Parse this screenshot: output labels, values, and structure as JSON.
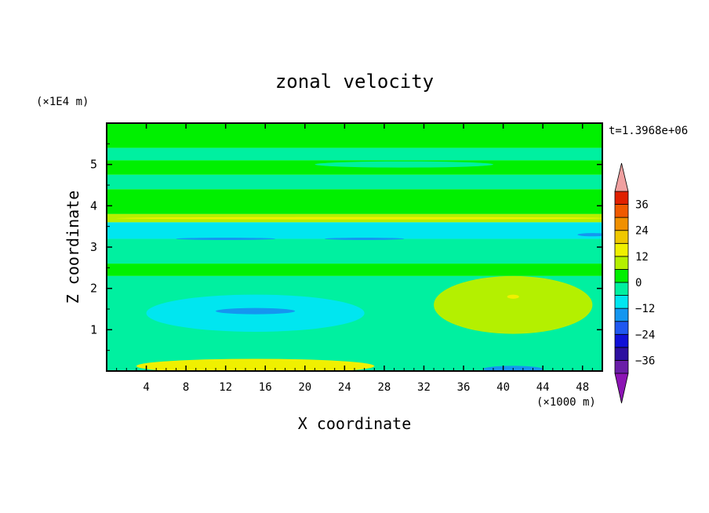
{
  "chart_data": {
    "type": "heatmap",
    "title": "zonal velocity",
    "xlabel": "X coordinate",
    "ylabel": "Z coordinate",
    "x_unit": "(×1000 m)",
    "y_unit": "(×1E4 m)",
    "time_label": "t=1.3968e+06",
    "xlim": [
      0,
      50
    ],
    "ylim": [
      0,
      6
    ],
    "x_ticks": [
      4,
      8,
      12,
      16,
      20,
      24,
      28,
      32,
      36,
      40,
      44,
      48
    ],
    "y_ticks": [
      1,
      2,
      3,
      4,
      5
    ],
    "colorbar": {
      "levels": [
        -42,
        -36,
        -30,
        -24,
        -18,
        -12,
        -6,
        0,
        6,
        12,
        18,
        24,
        30,
        36,
        42
      ],
      "tick_labels": [
        "36",
        "24",
        "12",
        "0",
        "−12",
        "−24",
        "−36"
      ],
      "tick_values": [
        36,
        24,
        12,
        0,
        -12,
        -24,
        -36
      ],
      "colors": [
        "#6a1ea8",
        "#2d0fa0",
        "#1010d8",
        "#2058f0",
        "#1496f0",
        "#00e6f0",
        "#00f0a0",
        "#00f000",
        "#b4f000",
        "#f0f000",
        "#f0c800",
        "#f09000",
        "#f05a00",
        "#e02000"
      ],
      "under_color": "#8c14b4",
      "over_color": "#f0a0a0"
    },
    "bands": [
      {
        "zmin": 5.4,
        "zmax": 6.0,
        "value": 2,
        "color": "#00f000"
      },
      {
        "zmin": 5.1,
        "zmax": 5.4,
        "value": -2,
        "color": "#00f0a0"
      },
      {
        "zmin": 4.75,
        "zmax": 5.1,
        "value": 2,
        "color": "#00f000"
      },
      {
        "zmin": 4.4,
        "zmax": 4.75,
        "value": -2,
        "color": "#00f0a0"
      },
      {
        "zmin": 3.8,
        "zmax": 4.4,
        "value": 3,
        "color": "#00f000"
      },
      {
        "zmin": 3.6,
        "zmax": 3.8,
        "value": 8,
        "color": "#b4f000"
      },
      {
        "zmin": 3.2,
        "zmax": 3.6,
        "value": -10,
        "color": "#00e6f0"
      },
      {
        "zmin": 2.6,
        "zmax": 3.2,
        "value": -5,
        "color": "#00f0a0"
      },
      {
        "zmin": 2.3,
        "zmax": 2.6,
        "value": 2,
        "color": "#00f000"
      },
      {
        "zmin": 0.0,
        "zmax": 2.3,
        "value": -4,
        "color": "#00f0a0"
      }
    ],
    "features": [
      {
        "name": "upper-cyan-lens",
        "center": [
          30,
          5.0
        ],
        "size": [
          18,
          0.15
        ],
        "value": -3,
        "color": "#00f0a0"
      },
      {
        "name": "jet-core",
        "center": [
          26,
          3.7
        ],
        "size": [
          50,
          0.05
        ],
        "value": 12,
        "color": "#f0f000"
      },
      {
        "name": "blue-streak-left",
        "center": [
          12,
          3.2
        ],
        "size": [
          10,
          0.04
        ],
        "value": -16,
        "color": "#1496f0"
      },
      {
        "name": "blue-streak-mid",
        "center": [
          26,
          3.2
        ],
        "size": [
          8,
          0.04
        ],
        "value": -16,
        "color": "#1496f0"
      },
      {
        "name": "blue-streak-right",
        "center": [
          49,
          3.3
        ],
        "size": [
          3,
          0.08
        ],
        "value": -16,
        "color": "#1496f0"
      },
      {
        "name": "cyan-pool",
        "center": [
          15,
          1.4
        ],
        "size": [
          22,
          0.9
        ],
        "value": -11,
        "color": "#00e6f0"
      },
      {
        "name": "blue-core",
        "center": [
          15,
          1.45
        ],
        "size": [
          8,
          0.15
        ],
        "value": -16,
        "color": "#1496f0"
      },
      {
        "name": "yellow-green-block",
        "center": [
          41,
          1.6
        ],
        "size": [
          16,
          1.4
        ],
        "value": 8,
        "color": "#b4f000"
      },
      {
        "name": "yellow-spot",
        "center": [
          41,
          1.8
        ],
        "size": [
          1.2,
          0.1
        ],
        "value": 12,
        "color": "#f0f000"
      },
      {
        "name": "bottom-yellow",
        "center": [
          15,
          0.12
        ],
        "size": [
          24,
          0.35
        ],
        "value": 12,
        "color": "#f0f000"
      },
      {
        "name": "bottom-blue-right",
        "center": [
          41,
          0.05
        ],
        "size": [
          6,
          0.15
        ],
        "value": -16,
        "color": "#1496f0"
      }
    ]
  }
}
